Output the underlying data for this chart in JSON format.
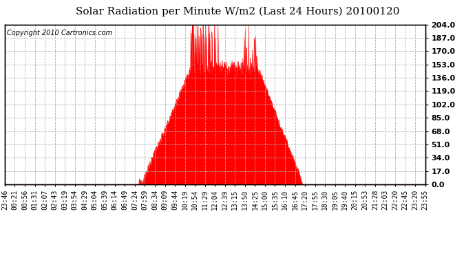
{
  "title": "Solar Radiation per Minute W/m2 (Last 24 Hours) 20100120",
  "copyright": "Copyright 2010 Cartronics.com",
  "background_color": "#ffffff",
  "plot_bg_color": "#ffffff",
  "bar_color": "#ff0000",
  "grid_color": "#b0b0b0",
  "dashed_line_color": "#ff0000",
  "ymin": 0.0,
  "ymax": 204.0,
  "yticks": [
    0.0,
    17.0,
    34.0,
    51.0,
    68.0,
    85.0,
    102.0,
    119.0,
    136.0,
    153.0,
    170.0,
    187.0,
    204.0
  ],
  "xtick_labels": [
    "23:46",
    "00:21",
    "00:56",
    "01:31",
    "02:07",
    "02:43",
    "03:19",
    "03:54",
    "04:29",
    "05:04",
    "05:39",
    "06:14",
    "06:49",
    "07:24",
    "07:59",
    "08:34",
    "09:09",
    "09:44",
    "10:19",
    "10:54",
    "11:29",
    "12:04",
    "12:39",
    "13:15",
    "13:50",
    "14:25",
    "15:00",
    "15:35",
    "16:10",
    "16:45",
    "17:20",
    "17:55",
    "18:30",
    "19:05",
    "19:40",
    "20:15",
    "20:53",
    "21:28",
    "22:03",
    "22:20",
    "22:45",
    "23:20",
    "23:55"
  ],
  "title_fontsize": 11,
  "copyright_fontsize": 7,
  "tick_fontsize": 7,
  "ytick_fontsize": 8
}
